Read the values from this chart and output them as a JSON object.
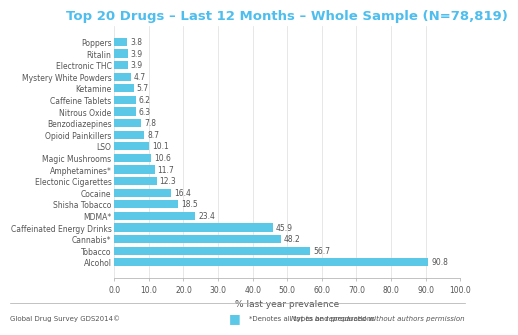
{
  "title": "Top 20 Drugs – Last 12 Months – Whole Sample (N=78,819)",
  "title_color": "#4DBEEE",
  "xlabel": "% last year prevalence",
  "drugs": [
    "Poppers",
    "Ritalin",
    "Electronic THC",
    "Mystery White Powders",
    "Ketamine",
    "Caffeine Tablets",
    "Nitrous Oxide",
    "Benzodiazepines",
    "Opioid Painkillers",
    "LSO",
    "Magic Mushrooms",
    "Amphetamines*",
    "Electonic Cigarettes",
    "Cocaine",
    "Shisha Tobacco",
    "MDMA*",
    "Caffeinated Energy Drinks",
    "Cannabis*",
    "Tobacco",
    "Alcohol"
  ],
  "values": [
    3.8,
    3.9,
    3.9,
    4.7,
    5.7,
    6.2,
    6.3,
    7.8,
    8.7,
    10.1,
    10.6,
    11.7,
    12.3,
    16.4,
    18.5,
    23.4,
    45.9,
    48.2,
    56.7,
    90.8
  ],
  "bar_color": "#5BC8E8",
  "background_color": "#ffffff",
  "xlim": [
    0,
    100
  ],
  "xticks": [
    0.0,
    10.0,
    20.0,
    30.0,
    40.0,
    50.0,
    60.0,
    70.0,
    80.0,
    90.0,
    100.0
  ],
  "footer_left": "Global Drug Survey GDS2014©",
  "footer_right": "Not to be reproduced without authors permission",
  "legend_text": "*Denotes all types and preparations",
  "legend_dot_color": "#5BC8E8",
  "value_fontsize": 5.5,
  "label_fontsize": 5.5,
  "title_fontsize": 9.5,
  "xlabel_fontsize": 6.5,
  "footer_fontsize": 5.0,
  "legend_fontsize": 5.0
}
